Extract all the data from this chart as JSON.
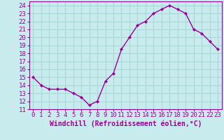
{
  "x": [
    0,
    1,
    2,
    3,
    4,
    5,
    6,
    7,
    8,
    9,
    10,
    11,
    12,
    13,
    14,
    15,
    16,
    17,
    18,
    19,
    20,
    21,
    22,
    23
  ],
  "y": [
    15,
    14,
    13.5,
    13.5,
    13.5,
    13,
    12.5,
    11.5,
    12,
    14.5,
    15.5,
    18.5,
    20,
    21.5,
    22,
    23,
    23.5,
    24,
    23.5,
    23,
    21,
    20.5,
    19.5,
    18.5
  ],
  "line_color": "#990099",
  "marker": "D",
  "marker_size": 2,
  "bg_color": "#c8eced",
  "grid_color": "#aad8d8",
  "xlabel": "Windchill (Refroidissement éolien,°C)",
  "xlabel_fontsize": 7,
  "tick_fontsize": 6.5,
  "tick_color": "#990099",
  "ylim": [
    11,
    24.5
  ],
  "xlim": [
    -0.5,
    23.5
  ],
  "yticks": [
    11,
    12,
    13,
    14,
    15,
    16,
    17,
    18,
    19,
    20,
    21,
    22,
    23,
    24
  ],
  "xticks": [
    0,
    1,
    2,
    3,
    4,
    5,
    6,
    7,
    8,
    9,
    10,
    11,
    12,
    13,
    14,
    15,
    16,
    17,
    18,
    19,
    20,
    21,
    22,
    23
  ]
}
